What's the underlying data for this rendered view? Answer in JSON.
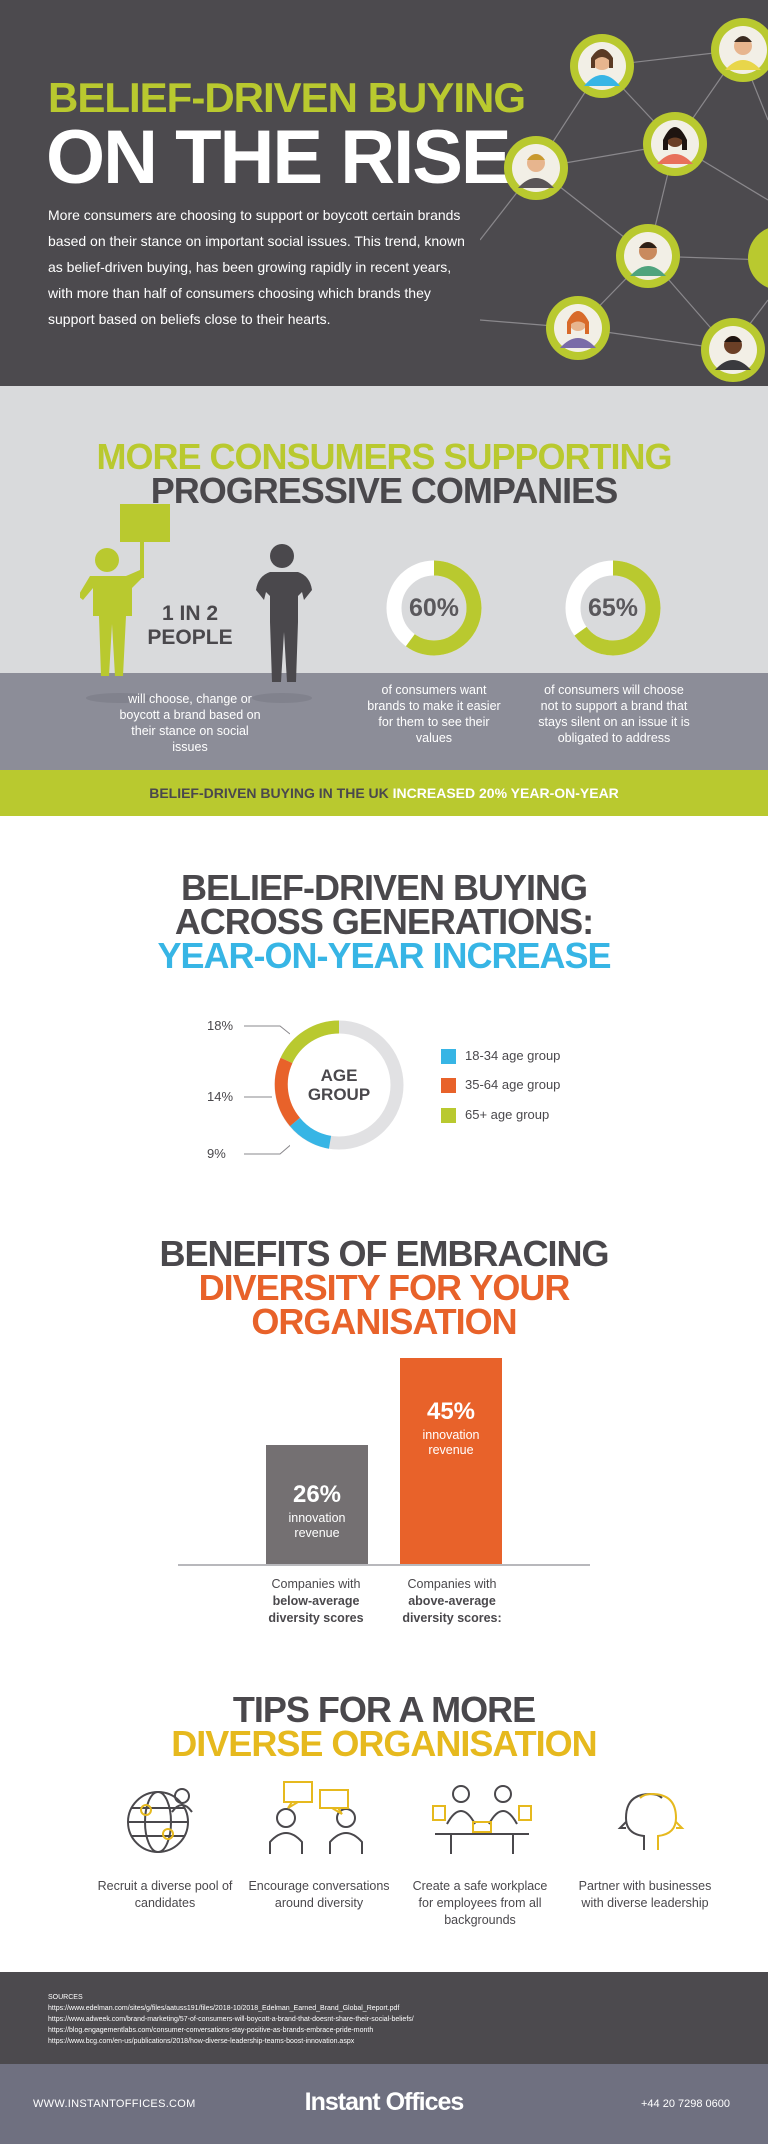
{
  "hero": {
    "title_line1": "BELIEF-DRIVEN BUYING",
    "title_line2": "ON THE RISE",
    "intro": "More consumers are choosing to support or boycott certain brands based on their stance on important social issues. This trend, known as belief-driven buying, has been growing rapidly in recent years, with more than half of consumers choosing which brands they support based on beliefs close to their hearts."
  },
  "supporting": {
    "title_line1": "MORE CONSUMERS SUPPORTING",
    "title_line2": "PROGRESSIVE COMPANIES",
    "stat1": {
      "value": "1 IN 2 PEOPLE",
      "caption": "will choose, change or boycott a brand based on their stance on social issues"
    },
    "stat2": {
      "value": "60%",
      "percent": 60,
      "caption": "of consumers want brands to make it easier for them to see their values"
    },
    "stat3": {
      "value": "65%",
      "percent": 65,
      "caption": "of consumers will choose not to support a brand that stays silent on an issue it is obligated to address"
    }
  },
  "strip": {
    "part1": "BELIEF-DRIVEN BUYING IN THE UK",
    "part2": "INCREASED 20% YEAR-ON-YEAR"
  },
  "generations": {
    "title_line1": "BELIEF-DRIVEN BUYING",
    "title_line2": "ACROSS GENERATIONS:",
    "title_line3": "YEAR-ON-YEAR INCREASE",
    "center_label": "AGE GROUP",
    "labels": [
      "18%",
      "14%",
      "9%"
    ],
    "legend": [
      {
        "label": "18-34 age group",
        "color": "#37b5e5"
      },
      {
        "label": "35-64 age group",
        "color": "#e8622a"
      },
      {
        "label": "65+ age group",
        "color": "#b9c92f"
      }
    ]
  },
  "chart_data": {
    "type": "bar",
    "categories": [
      "Companies with below-average diversity scores",
      "Companies with above-average diversity scores:"
    ],
    "values": [
      26,
      45
    ],
    "value_labels": [
      "26%",
      "45%"
    ],
    "bar_sublabel": "innovation revenue",
    "colors": [
      "#747072",
      "#e8622a"
    ]
  },
  "diversity": {
    "title_line1": "BENEFITS OF EMBRACING",
    "title_line2": "DIVERSITY FOR YOUR",
    "title_line3": "ORGANISATION",
    "bar1_value": "26%",
    "bar2_value": "45%",
    "bar_sub1": "innovation",
    "bar_sub2": "revenue",
    "cap1_line1": "Companies with",
    "cap1_line2": "below-average",
    "cap1_line3": "diversity scores",
    "cap2_line1": "Companies with",
    "cap2_line2": "above-average",
    "cap2_line3": "diversity scores:"
  },
  "tips": {
    "title_line1": "TIPS FOR A MORE",
    "title_line2": "DIVERSE ORGANISATION",
    "items": [
      {
        "caption": "Recruit a diverse pool of candidates",
        "icon": "globe-people-icon"
      },
      {
        "caption": "Encourage conversations around diversity",
        "icon": "conversation-icon"
      },
      {
        "caption": "Create a safe workplace for employees from all backgrounds",
        "icon": "meeting-table-icon"
      },
      {
        "caption": "Partner with businesses with diverse leadership",
        "icon": "two-heads-icon"
      }
    ]
  },
  "sources": {
    "heading": "SOURCES",
    "links": [
      "https://www.edelman.com/sites/g/files/aatuss191/files/2018-10/2018_Edelman_Earned_Brand_Global_Report.pdf",
      "https://www.adweek.com/brand-marketing/57-of-consumers-will-boycott-a-brand-that-doesnt-share-their-social-beliefs/",
      "https://blog.engagementlabs.com/consumer-conversations-stay-positive-as-brands-embrace-pride-month",
      "https://www.bcg.com/en-us/publications/2018/how-diverse-leadership-teams-boost-innovation.aspx"
    ]
  },
  "footer": {
    "site": "WWW.INSTANTOFFICES.COM",
    "brand": "Instant Offices",
    "phone": "+44 20 7298 0600"
  },
  "colors": {
    "green": "#b9c92f",
    "dark": "#4c4a4e",
    "blue": "#37b5e5",
    "orange": "#e8622a",
    "yellow": "#e6b91e"
  }
}
